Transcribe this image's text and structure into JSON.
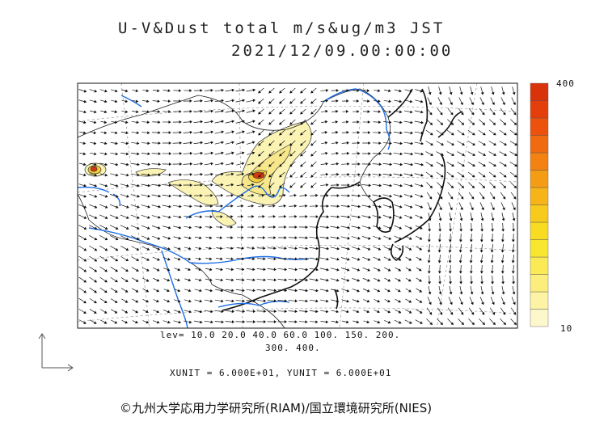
{
  "title": {
    "line1": "U-V&Dust total m/s&ug/m3 JST",
    "line2": "2021/12/09.00:00:00"
  },
  "legend": {
    "levels_line1": "lev= 10.0 20.0 40.0 60.0 100. 150. 200.",
    "levels_line2": "300. 400.",
    "units": "XUNIT = 6.000E+01, YUNIT = 6.000E+01",
    "colorbar_max": "400",
    "colorbar_min": "10"
  },
  "colorbar_colors": [
    "#fdf8cc",
    "#fcf3a4",
    "#fbee7d",
    "#faea55",
    "#f9e631",
    "#f8dc21",
    "#f7ca1c",
    "#f6b418",
    "#f59c15",
    "#f38212",
    "#f06a10",
    "#ec520d",
    "#e43f0b",
    "#d8330a"
  ],
  "credit": "©九州大学応用力学研究所(RIAM)/国立環境研究所(NIES)",
  "colors": {
    "river": "#1e6ee6",
    "coast": "#111111",
    "dust_light": "#faf3b4",
    "dust_mid": "#f2cd3d",
    "dust_core": "#d8380d"
  }
}
